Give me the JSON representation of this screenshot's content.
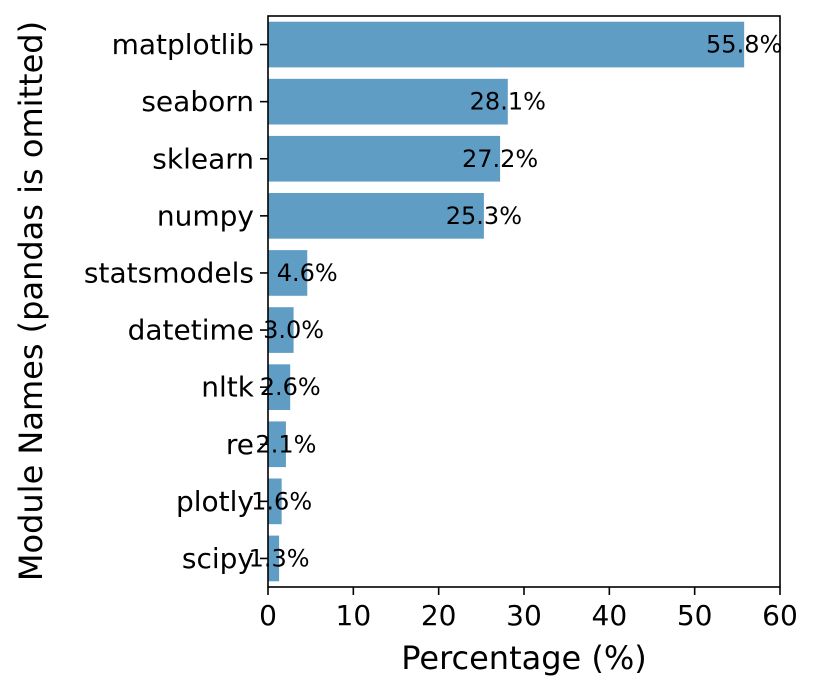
{
  "chart_data": {
    "type": "bar",
    "orientation": "horizontal",
    "categories": [
      "matplotlib",
      "seaborn",
      "sklearn",
      "numpy",
      "statsmodels",
      "datetime",
      "nltk",
      "re",
      "plotly",
      "scipy"
    ],
    "values": [
      55.8,
      28.1,
      27.2,
      25.3,
      4.6,
      3.0,
      2.6,
      2.1,
      1.6,
      1.3
    ],
    "data_labels": [
      "55.8%",
      "28.1%",
      "27.2%",
      "25.3%",
      "4.6%",
      "3.0%",
      "2.6%",
      "2.1%",
      "1.6%",
      "1.3%"
    ],
    "title": "",
    "xlabel": "Percentage (%)",
    "ylabel": "Module Names (pandas is omitted)",
    "xlim": [
      0,
      60
    ],
    "xticks": [
      0,
      10,
      20,
      30,
      40,
      50,
      60
    ],
    "grid": false,
    "bar_color": "#5f9dc4"
  }
}
